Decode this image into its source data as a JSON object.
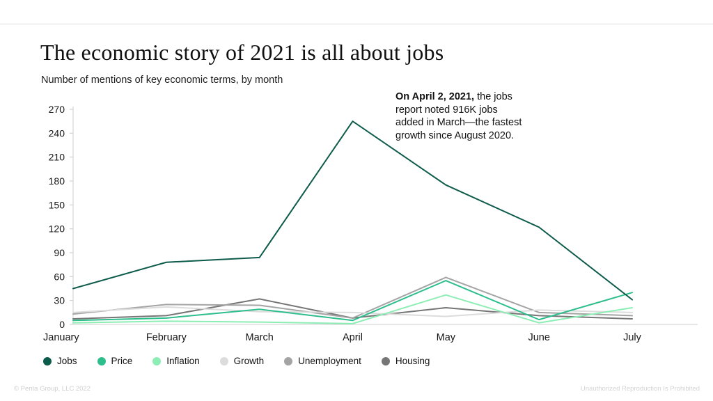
{
  "header": {
    "title": "The economic story of 2021 is all about jobs",
    "subtitle": "Number of mentions of key economic terms, by month"
  },
  "annotation": {
    "bold": "On April 2, 2021,",
    "rest": " the jobs report noted 916K jobs added in March—the fastest growth since August 2020."
  },
  "footer": {
    "left": "© Penta Group, LLC 2022",
    "right": "Unauthorized Reproduction Is Prohibited"
  },
  "chart_data": {
    "type": "line",
    "title": "The economic story of 2021 is all about jobs",
    "subtitle": "Number of mentions of key economic terms, by month",
    "xlabel": "",
    "ylabel": "Number of mentions",
    "categories": [
      "January",
      "February",
      "March",
      "April",
      "May",
      "June",
      "July"
    ],
    "series": [
      {
        "name": "Jobs",
        "color": "#0d5b4a",
        "values": [
          45,
          78,
          84,
          255,
          175,
          122,
          31
        ]
      },
      {
        "name": "Price",
        "color": "#2ebe8b",
        "values": [
          5,
          8,
          19,
          5,
          55,
          6,
          40
        ]
      },
      {
        "name": "Inflation",
        "color": "#8deeb5",
        "values": [
          2,
          4,
          3,
          1,
          37,
          2,
          21
        ]
      },
      {
        "name": "Growth",
        "color": "#dcdcdc",
        "values": [
          15,
          22,
          16,
          15,
          10,
          18,
          15
        ]
      },
      {
        "name": "Unemployment",
        "color": "#a4a4a4",
        "values": [
          13,
          25,
          24,
          8,
          59,
          15,
          11
        ]
      },
      {
        "name": "Housing",
        "color": "#767676",
        "values": [
          7,
          11,
          32,
          8,
          21,
          11,
          7
        ]
      }
    ],
    "ylim": [
      0,
      270
    ],
    "ytick_step": 30,
    "yticks": [
      0,
      30,
      60,
      90,
      120,
      150,
      180,
      210,
      240,
      270
    ],
    "grid": false,
    "legend_position": "bottom",
    "axis_color": "#cccccc"
  }
}
